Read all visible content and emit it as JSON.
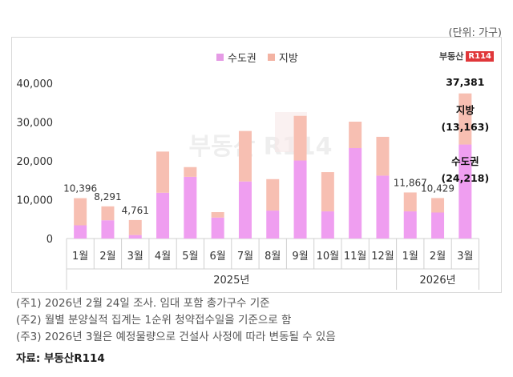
{
  "unit_label": "(단위: 가구)",
  "brand": {
    "text": "부동산",
    "box": "R114"
  },
  "notes": [
    "(주1) 2026년 2월 24일 조사. 임대 포함 총가구수 기준",
    "(주2) 월별 분양실적 집계는 1순위 청약접수일을 기준으로 함",
    "(주3) 2026년 3월은 예정물량으로 건설사 사정에 따라 변동될 수 있음"
  ],
  "source": "자료: 부동산R114",
  "colors": {
    "capital": "#ef9ef0",
    "local": "#f7bfb2",
    "capital_legend": "#e59be5",
    "local_legend": "#f3b3a3"
  },
  "chart_data": {
    "type": "bar",
    "stacked": true,
    "categories": [
      "1월",
      "2월",
      "3월",
      "4월",
      "5월",
      "6월",
      "7월",
      "8월",
      "9월",
      "10월",
      "11월",
      "12월",
      "1월",
      "2월",
      "3월"
    ],
    "groups": [
      {
        "label": "2025년",
        "from": 0,
        "to": 11
      },
      {
        "label": "2026년",
        "from": 12,
        "to": 14
      }
    ],
    "series": [
      {
        "name": "수도권",
        "values": [
          3400,
          4700,
          900,
          11800,
          15900,
          5400,
          14700,
          7200,
          20100,
          7000,
          23300,
          16200,
          7000,
          6700,
          24218
        ]
      },
      {
        "name": "지방",
        "values": [
          6996,
          3591,
          3861,
          10600,
          2500,
          1400,
          13000,
          8100,
          11500,
          10100,
          6800,
          10000,
          4867,
          3729,
          13163
        ]
      }
    ],
    "total_labels": [
      {
        "index": 0,
        "text": "10,396"
      },
      {
        "index": 1,
        "text": "8,291"
      },
      {
        "index": 2,
        "text": "4,761"
      },
      {
        "index": 12,
        "text": "11,867"
      },
      {
        "index": 13,
        "text": "10,429"
      }
    ],
    "annotations": [
      {
        "index": 14,
        "title": "",
        "value": "37,381"
      },
      {
        "index": 14,
        "title": "지방",
        "value": "(13,163)"
      },
      {
        "index": 14,
        "title": "수도권",
        "value": "(24,218)"
      }
    ],
    "y_ticks": [
      "0",
      "10,000",
      "20,000",
      "30,000",
      "40,000"
    ],
    "ylim": [
      0,
      40000
    ],
    "watermark": "부동산 R114",
    "legend": [
      "수도권",
      "지방"
    ]
  }
}
